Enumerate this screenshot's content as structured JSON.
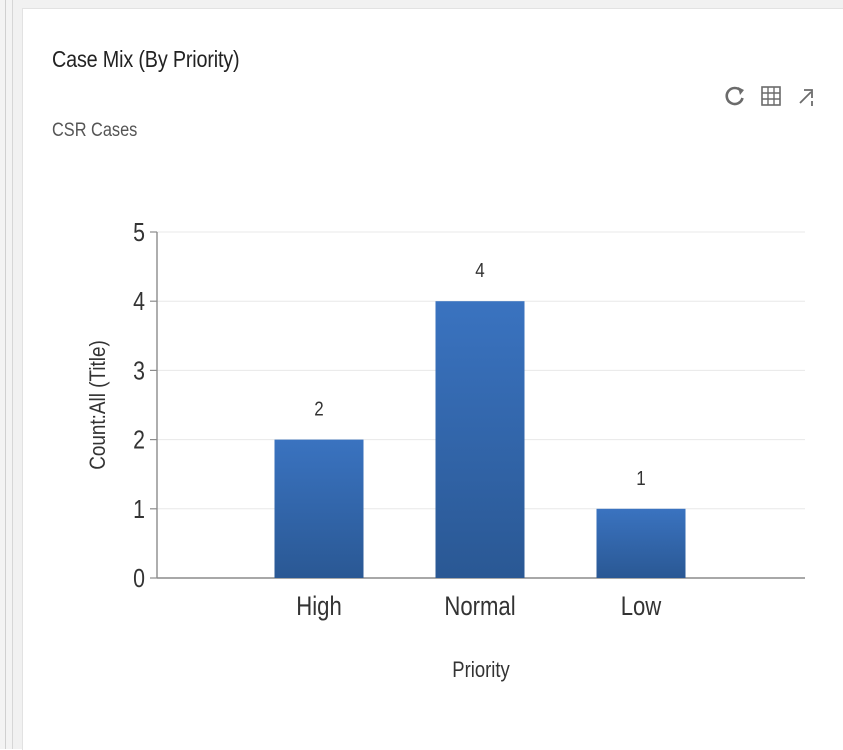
{
  "widget": {
    "title": "Case Mix (By Priority)",
    "subtitle": "CSR Cases",
    "toolbar": {
      "refresh_icon": "refresh-icon",
      "view_records_icon": "grid-icon",
      "expand_icon": "expand-icon"
    }
  },
  "colors": {
    "bar_top": "#3a73c0",
    "bar_bottom": "#2a5894",
    "axis": "#8c8c8c",
    "grid": "#e8e8e8",
    "text": "#333333"
  },
  "chart_data": {
    "type": "bar",
    "categories": [
      "High",
      "Normal",
      "Low"
    ],
    "values": [
      2,
      4,
      1
    ],
    "data_labels": [
      "2",
      "4",
      "1"
    ],
    "xlabel": "Priority",
    "ylabel": "Count:All (Title)",
    "ylim": [
      0,
      5
    ],
    "yticks": [
      "0",
      "1",
      "2",
      "3",
      "4",
      "5"
    ],
    "grid": true,
    "legend": "none"
  }
}
